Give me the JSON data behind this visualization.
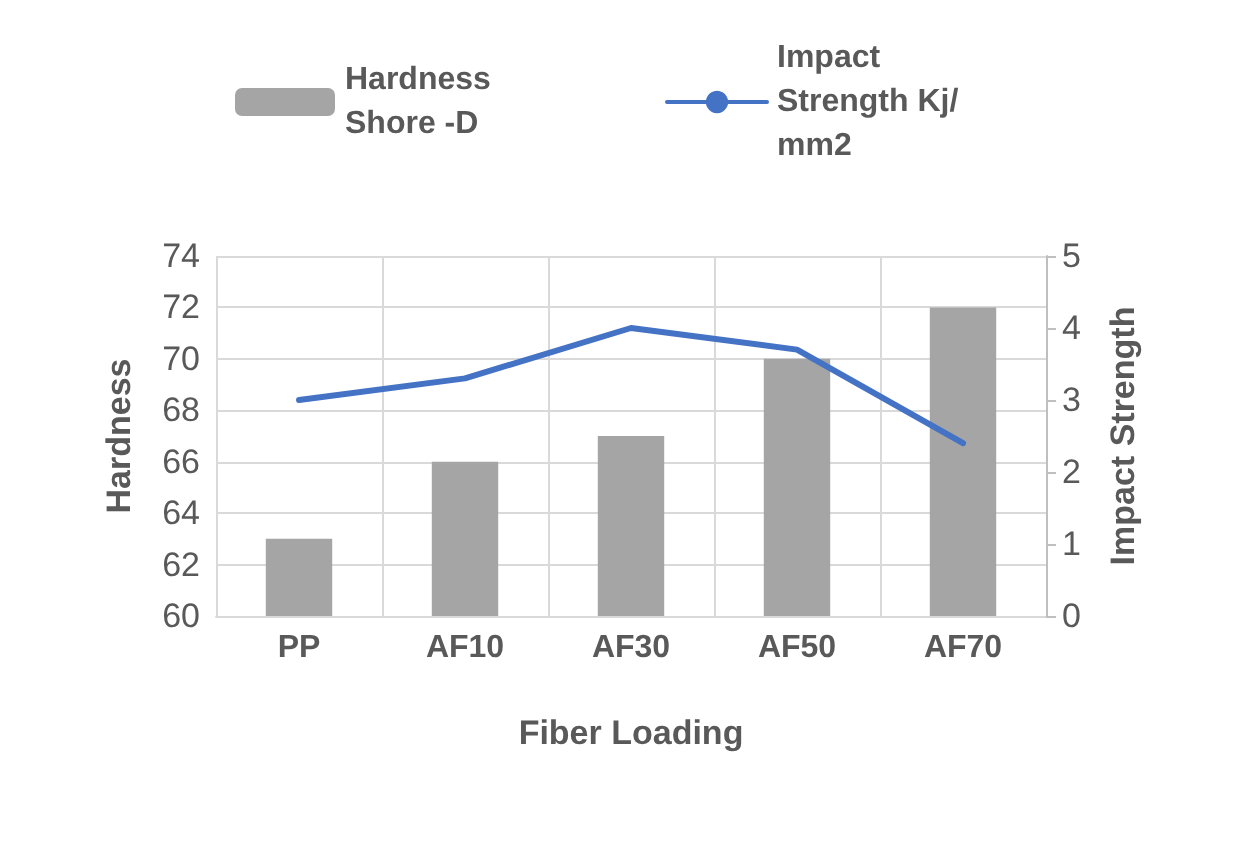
{
  "chart_data": {
    "type": "bar",
    "xlabel": "Fiber Loading",
    "ylabel": "Hardness",
    "y2label": "Impact Strength",
    "categories": [
      "PP",
      "AF10",
      "AF30",
      "AF50",
      "AF70"
    ],
    "series": [
      {
        "name": "Hardness Shore -D",
        "color": "#a5a5a5",
        "values": [
          63,
          66,
          67,
          70,
          72
        ]
      },
      {
        "name": "Impact Strength Kj/mm2",
        "type": "line",
        "axis": "y2",
        "color": "#4472c4",
        "values": [
          3.0,
          3.3,
          4.0,
          3.7,
          2.4
        ]
      }
    ],
    "ylim": [
      60,
      74
    ],
    "yticks": [
      60,
      62,
      64,
      66,
      68,
      70,
      72,
      74
    ],
    "y2lim": [
      0,
      5
    ],
    "y2ticks": [
      0,
      1,
      2,
      3,
      4,
      5
    ],
    "grid": true,
    "legend": "top",
    "marker": "none"
  }
}
